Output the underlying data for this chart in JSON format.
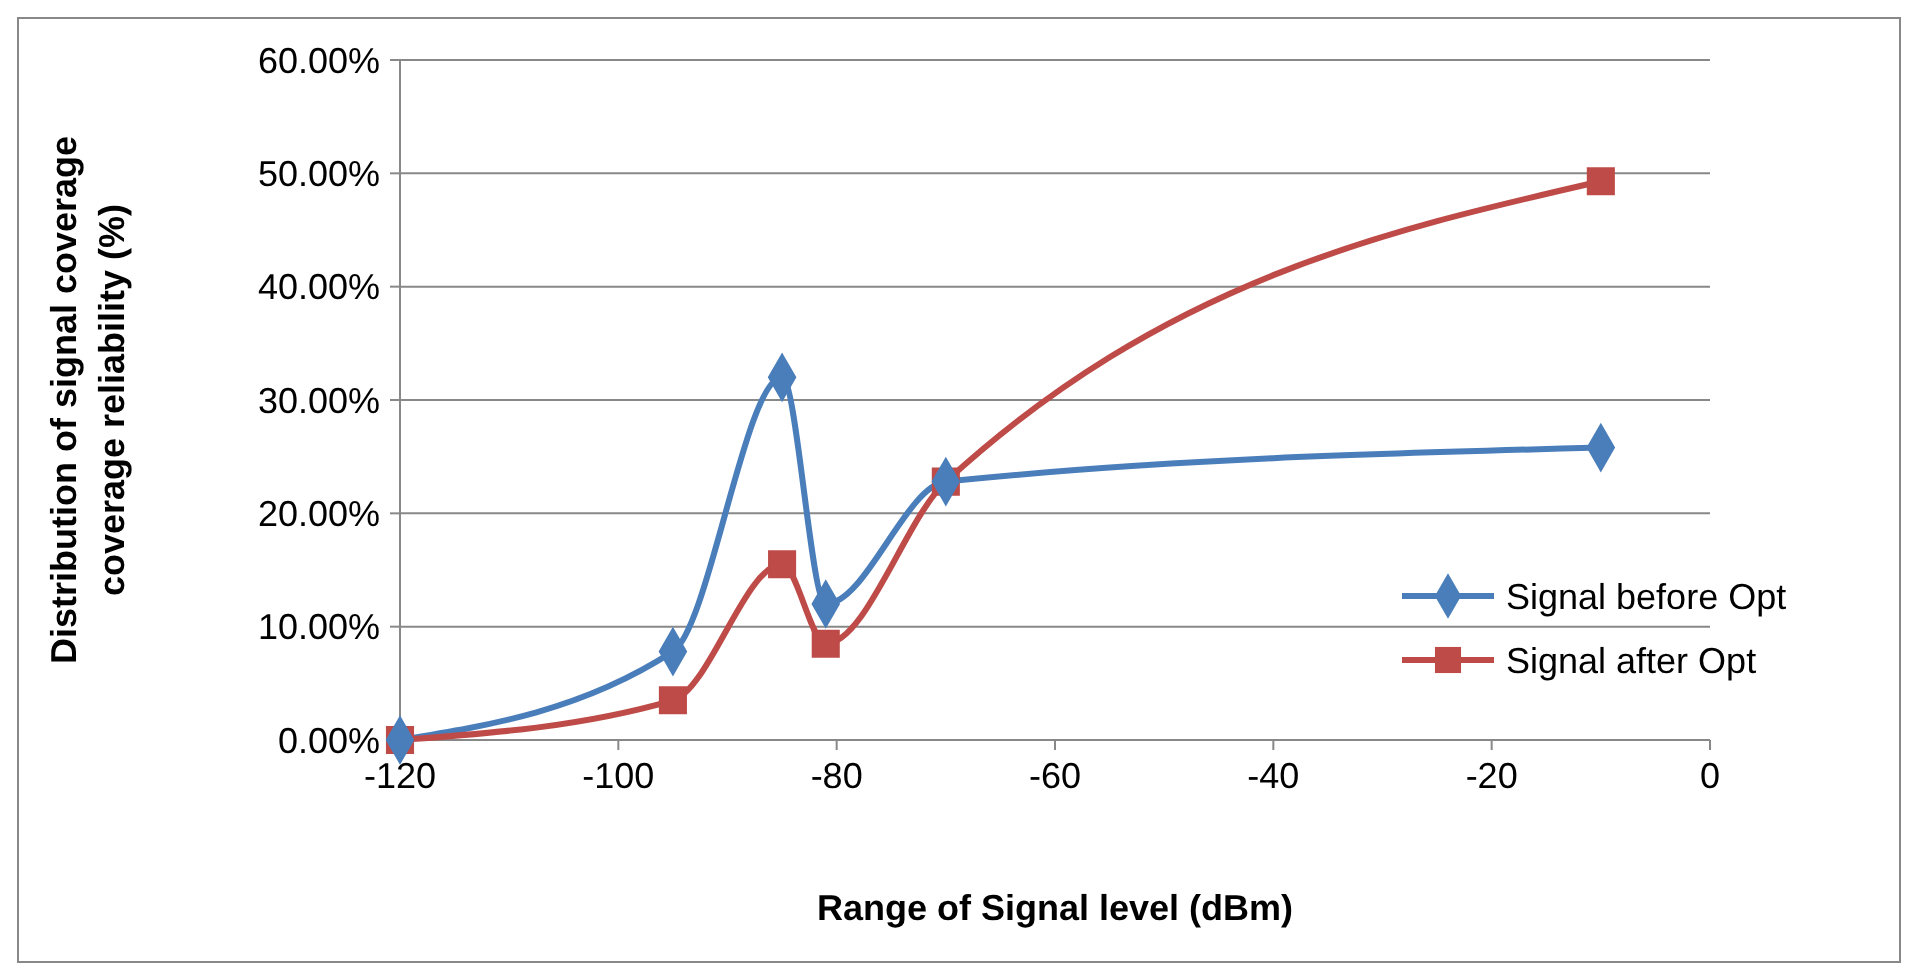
{
  "chart_data": {
    "type": "line",
    "xlabel": "Range of Signal level (dBm)",
    "ylabel": "Distribution of  signal coverage\ncoverage reliability (%)",
    "x": [
      -120,
      -95,
      -85,
      -81,
      -70,
      -10
    ],
    "series": [
      {
        "name": "Signal before Opt",
        "color": "#4a7ebb",
        "marker": "diamond",
        "values": [
          0,
          7.8,
          32,
          12,
          22.8,
          25.8
        ]
      },
      {
        "name": "Signal after Opt",
        "color": "#be4b48",
        "marker": "square",
        "values": [
          0,
          3.5,
          15.5,
          8.5,
          22.8,
          49.3
        ]
      }
    ],
    "xlim": [
      -120,
      0
    ],
    "xticks": [
      -120,
      -100,
      -80,
      -60,
      -40,
      -20,
      0
    ],
    "ylim": [
      0,
      60
    ],
    "yticks": [
      {
        "value": 0,
        "label": "0.00%"
      },
      {
        "value": 10,
        "label": "10.00%"
      },
      {
        "value": 20,
        "label": "20.00%"
      },
      {
        "value": 30,
        "label": "30.00%"
      },
      {
        "value": 40,
        "label": "40.00%"
      },
      {
        "value": 50,
        "label": "50.00%"
      },
      {
        "value": 60,
        "label": "60.00%"
      }
    ],
    "grid": "y",
    "legend": "right",
    "line_style": "solid"
  }
}
